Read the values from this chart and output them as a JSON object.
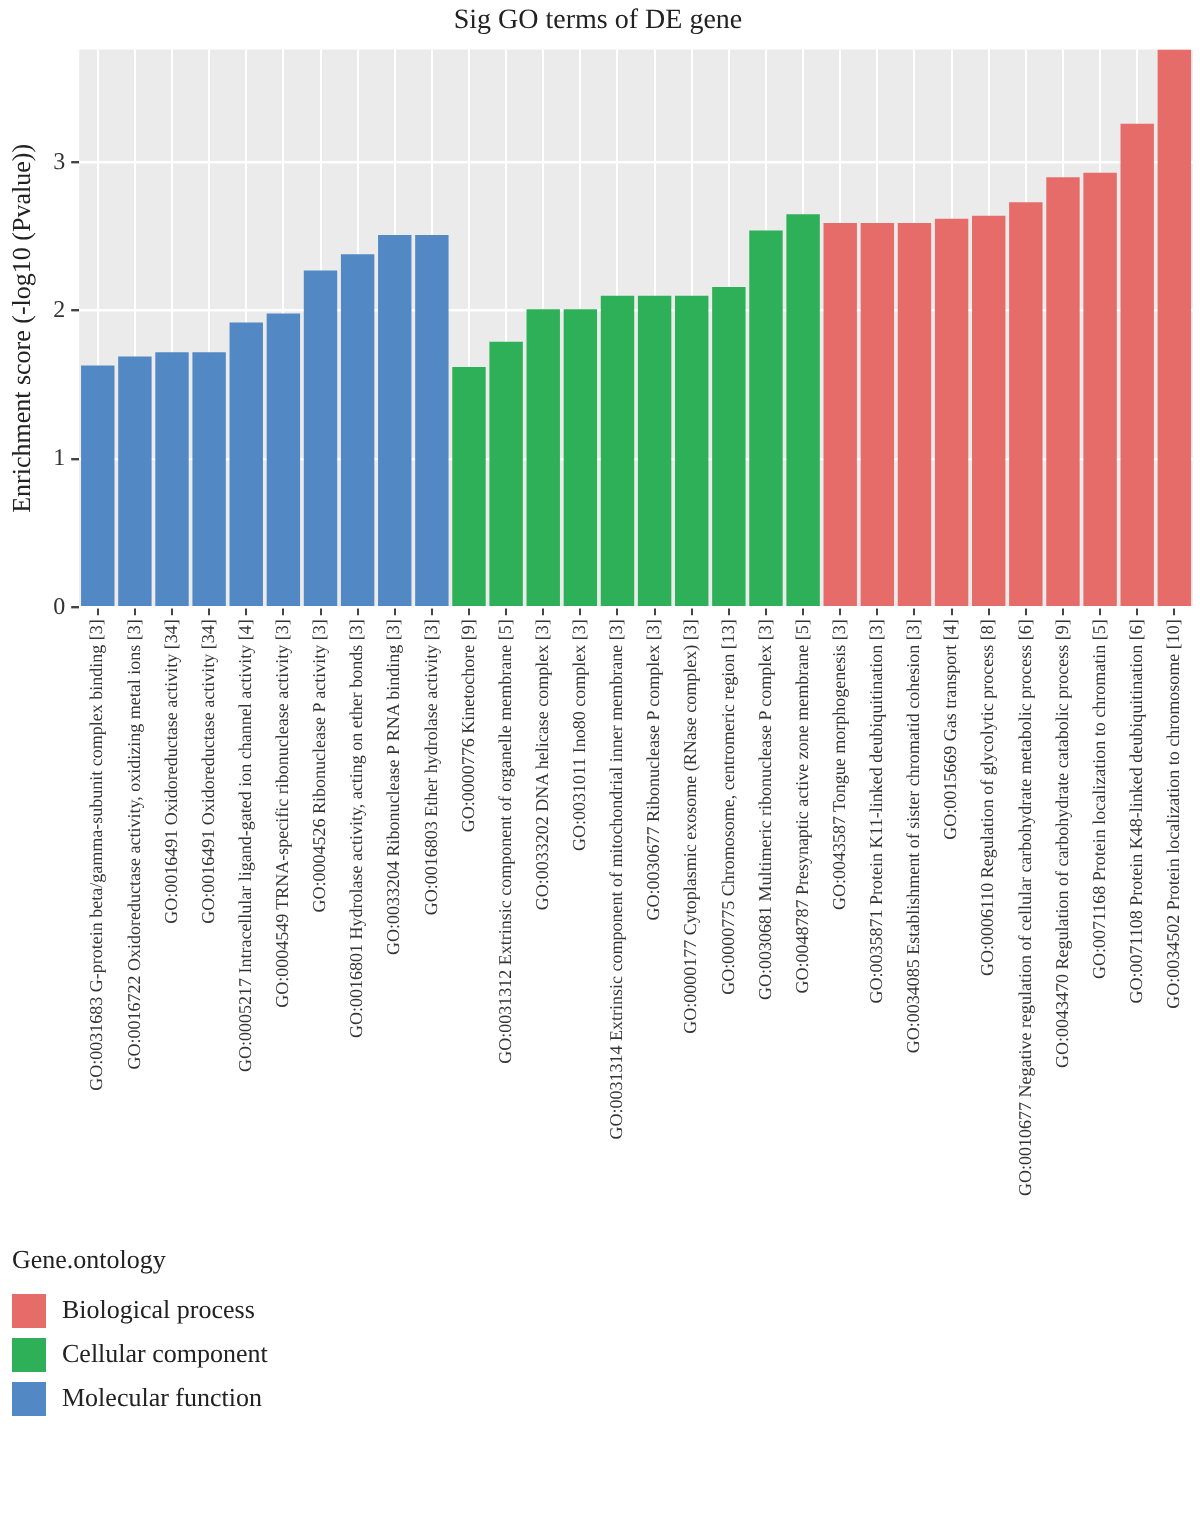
{
  "chart_data": {
    "type": "bar",
    "title": "Sig GO terms of DE gene",
    "ylabel": "Enrichment score (-log10 (Pvalue))",
    "legend_title": "Gene.ontology",
    "categories": [
      "GO:0031683 G-protein beta/gamma-subunit complex binding [3]",
      "GO:0016722 Oxidoreductase activity, oxidizing metal ions [3]",
      "GO:0016491 Oxidoreductase activity [34]",
      "GO:0016491 Oxidoreductase activity [34]",
      "GO:0005217 Intracellular ligand-gated ion channel activity [4]",
      "GO:0004549 TRNA-specific ribonuclease activity [3]",
      "GO:0004526 Ribonuclease P activity [3]",
      "GO:0016801 Hydrolase activity, acting on ether bonds [3]",
      "GO:0033204 Ribonuclease P RNA binding [3]",
      "GO:0016803 Ether hydrolase activity [3]",
      "GO:0000776 Kinetochore [9]",
      "GO:0031312 Extrinsic component of organelle membrane [5]",
      "GO:0033202 DNA helicase complex [3]",
      "GO:0031011 Ino80 complex [3]",
      "GO:0031314 Extrinsic component of mitochondrial inner membrane [3]",
      "GO:0030677 Ribonuclease P complex [3]",
      "GO:0000177 Cytoplasmic exosome (RNase complex) [3]",
      "GO:0000775 Chromosome, centromeric region [13]",
      "GO:0030681 Multimeric ribonuclease P complex [3]",
      "GO:0048787 Presynaptic active zone membrane [5]",
      "GO:0043587 Tongue morphogenesis [3]",
      "GO:0035871 Protein K11-linked deubiquitination [3]",
      "GO:0034085 Establishment of sister chromatid cohesion [3]",
      "GO:0015669 Gas transport [4]",
      "GO:0006110 Regulation of glycolytic process [8]",
      "GO:0010677 Negative regulation of cellular carbohydrate metabolic process [6]",
      "GO:0043470 Regulation of carbohydrate catabolic process [9]",
      "GO:0071168 Protein localization to chromatin [5]",
      "GO:0071108 Protein K48-linked deubiquitination [6]",
      "GO:0034502 Protein localization to chromosome [10]"
    ],
    "series": [
      {
        "name": "Biological process",
        "color": "#e66c6a",
        "values": [
          null,
          null,
          null,
          null,
          null,
          null,
          null,
          null,
          null,
          null,
          null,
          null,
          null,
          null,
          null,
          null,
          null,
          null,
          null,
          null,
          2.59,
          2.59,
          2.59,
          2.62,
          2.64,
          2.73,
          2.9,
          2.93,
          3.26,
          3.76
        ]
      },
      {
        "name": "Cellular component",
        "color": "#2eb058",
        "values": [
          null,
          null,
          null,
          null,
          null,
          null,
          null,
          null,
          null,
          null,
          1.62,
          1.79,
          2.01,
          2.01,
          2.1,
          2.1,
          2.1,
          2.16,
          2.54,
          2.65,
          null,
          null,
          null,
          null,
          null,
          null,
          null,
          null,
          null,
          null
        ]
      },
      {
        "name": "Molecular function",
        "color": "#5289c4",
        "values": [
          1.63,
          1.69,
          1.72,
          1.72,
          1.92,
          1.98,
          2.27,
          2.38,
          2.51,
          2.51,
          null,
          null,
          null,
          null,
          null,
          null,
          null,
          null,
          null,
          null,
          null,
          null,
          null,
          null,
          null,
          null,
          null,
          null,
          null,
          null
        ]
      }
    ],
    "ylim": [
      0,
      3.76
    ],
    "yticks": [
      0,
      1,
      2,
      3
    ],
    "grid": true,
    "legend": "bottom left"
  }
}
